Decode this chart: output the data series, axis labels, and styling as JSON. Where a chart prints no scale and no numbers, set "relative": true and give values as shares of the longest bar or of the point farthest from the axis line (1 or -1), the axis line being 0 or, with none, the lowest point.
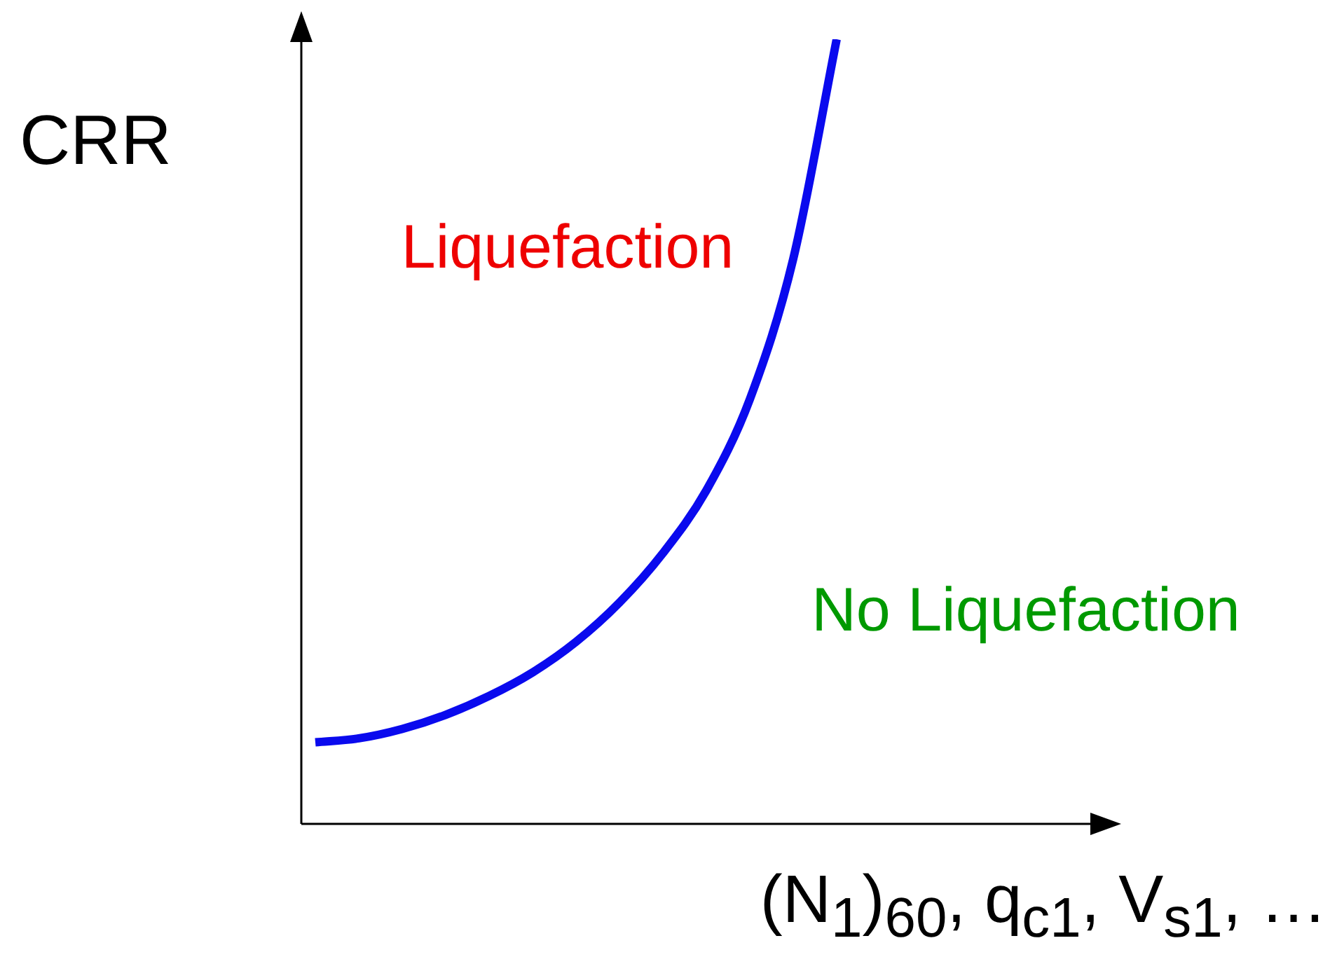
{
  "chart_data": {
    "type": "line",
    "relative": true,
    "ylabel": "CRR",
    "xlabel": "(N$_{1}$)$_{60}$, q$_{c1}$, V$_{s1}$, …",
    "annotations": [
      "Liquefaction",
      "No Liquefaction"
    ],
    "categories": [
      null,
      null,
      null,
      null,
      null,
      null,
      null,
      null,
      null,
      null,
      null,
      null,
      null
    ],
    "values": [
      0.104,
      0.109,
      0.121,
      0.139,
      0.163,
      0.193,
      0.232,
      0.282,
      0.345,
      0.425,
      0.541,
      0.72,
      1
    ],
    "color": "#0a0aee"
  }
}
